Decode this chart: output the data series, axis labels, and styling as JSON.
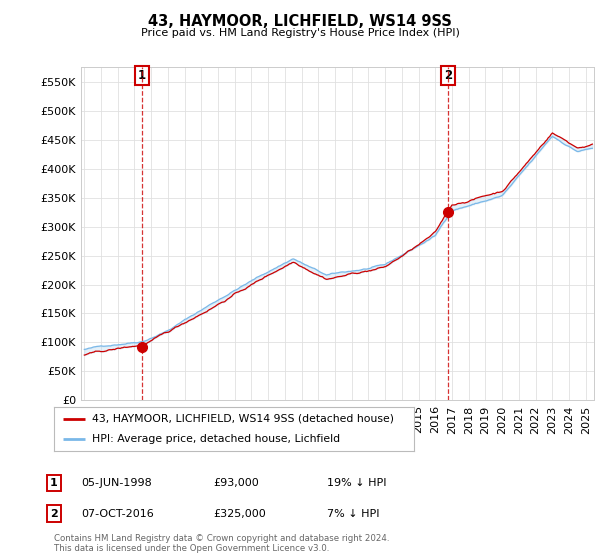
{
  "title": "43, HAYMOOR, LICHFIELD, WS14 9SS",
  "subtitle": "Price paid vs. HM Land Registry's House Price Index (HPI)",
  "ylim": [
    0,
    575000
  ],
  "yticks": [
    0,
    50000,
    100000,
    150000,
    200000,
    250000,
    300000,
    350000,
    400000,
    450000,
    500000,
    550000
  ],
  "xlim_start": 1994.8,
  "xlim_end": 2025.5,
  "sale1_date": 1998.43,
  "sale1_price": 93000,
  "sale1_label": "1",
  "sale2_date": 2016.77,
  "sale2_price": 325000,
  "sale2_label": "2",
  "hpi_color": "#7ab8e8",
  "hpi_fill_color": "#b8d8f0",
  "price_color": "#cc0000",
  "annotation_box_color": "#cc0000",
  "grid_color": "#e0e0e0",
  "background_color": "#ffffff",
  "legend_label1": "43, HAYMOOR, LICHFIELD, WS14 9SS (detached house)",
  "legend_label2": "HPI: Average price, detached house, Lichfield",
  "footer": "Contains HM Land Registry data © Crown copyright and database right 2024.\nThis data is licensed under the Open Government Licence v3.0.",
  "table_rows": [
    {
      "num": "1",
      "date": "05-JUN-1998",
      "price": "£93,000",
      "hpi": "19% ↓ HPI"
    },
    {
      "num": "2",
      "date": "07-OCT-2016",
      "price": "£325,000",
      "hpi": "7% ↓ HPI"
    }
  ]
}
